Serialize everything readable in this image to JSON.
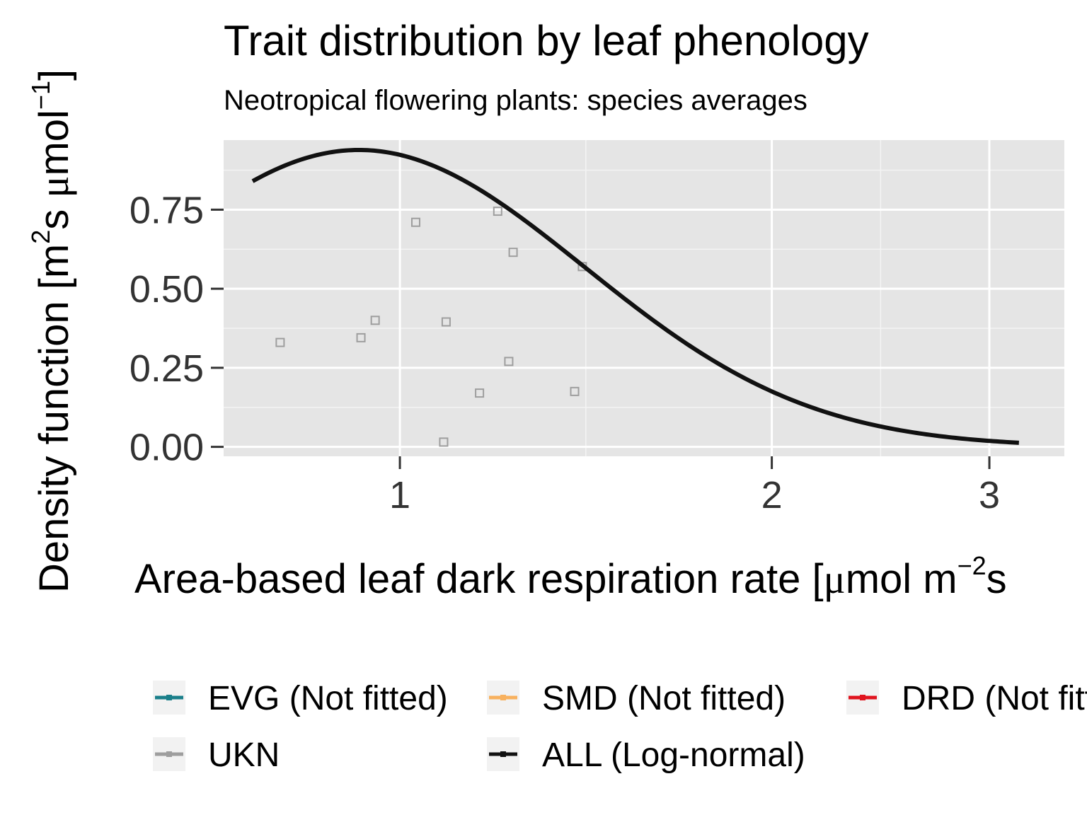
{
  "chart_data": {
    "type": "scatter",
    "title": "Trait distribution by leaf phenology",
    "subtitle": "Neotropical flowering plants: species averages",
    "xlabel": {
      "parts": [
        "Area-based leaf dark respiration rate [",
        "μ",
        "mol  m",
        "−2",
        "s"
      ]
    },
    "ylabel": {
      "parts": [
        "Density function [m",
        "2",
        "s  ",
        "μ",
        "mol",
        "−1",
        "]"
      ]
    },
    "x_scale": "log",
    "xlim": [
      0.72,
      3.45
    ],
    "ylim": [
      -0.03,
      0.97
    ],
    "x_ticks": [
      1,
      2,
      3
    ],
    "x_tick_labels": [
      "1",
      "2",
      "3"
    ],
    "y_ticks": [
      0,
      0.25,
      0.5,
      0.75
    ],
    "y_tick_labels": [
      "0.00",
      "0.25",
      "0.50",
      "0.75"
    ],
    "grid": true,
    "legend_position": "bottom",
    "series": [
      {
        "name": "UKN",
        "kind": "points",
        "color": "#9e9e9e",
        "marker": "open-square",
        "points": [
          {
            "x": 0.8,
            "y": 0.33
          },
          {
            "x": 0.93,
            "y": 0.345
          },
          {
            "x": 0.955,
            "y": 0.4
          },
          {
            "x": 1.03,
            "y": 0.71
          },
          {
            "x": 1.09,
            "y": 0.395
          },
          {
            "x": 1.085,
            "y": 0.015
          },
          {
            "x": 1.16,
            "y": 0.17
          },
          {
            "x": 1.2,
            "y": 0.745
          },
          {
            "x": 1.225,
            "y": 0.27
          },
          {
            "x": 1.235,
            "y": 0.615
          },
          {
            "x": 1.385,
            "y": 0.175
          },
          {
            "x": 1.405,
            "y": 0.57
          }
        ]
      },
      {
        "name": "ALL (Log-normal)",
        "kind": "curve",
        "color": "#111111",
        "distribution": "log-normal",
        "meanlog": 0.1,
        "sdlog": 0.42,
        "x_range": [
          0.76,
          3.17
        ]
      }
    ],
    "legend": [
      {
        "label": "EVG (Not fitted)",
        "color": "#1a7f8a"
      },
      {
        "label": "SMD (Not fitted)",
        "color": "#f8b15e"
      },
      {
        "label": "DRD (Not fitted)",
        "color": "#e0141e"
      },
      {
        "label": "UKN",
        "color": "#9e9e9e"
      },
      {
        "label": "ALL (Log-normal)",
        "color": "#111111"
      }
    ]
  }
}
